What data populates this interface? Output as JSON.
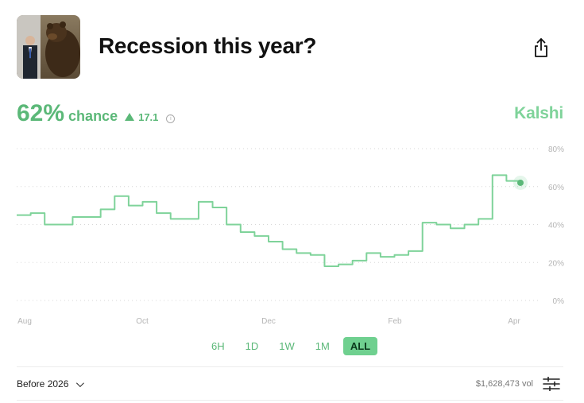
{
  "header": {
    "title": "Recession this year?",
    "thumbnail_icon": "bear-statue-photo",
    "share_icon": "share-icon"
  },
  "stats": {
    "probability": "62%",
    "chance_label": "chance",
    "change": "17.1",
    "change_direction": "up",
    "brand": "Kalshi"
  },
  "ranges": [
    "6H",
    "1D",
    "1W",
    "1M",
    "ALL"
  ],
  "active_range": "ALL",
  "footer": {
    "filter_label": "Before 2026",
    "volume": "$1,628,473 vol",
    "settings_icon": "sliders-icon"
  },
  "colors": {
    "accent": "#5bb878",
    "line": "#7fd39a",
    "active_button": "#6fd08f"
  },
  "chart_data": {
    "type": "line",
    "title": "",
    "xlabel": "",
    "ylabel": "",
    "x_ticks": [
      "Aug",
      "Oct",
      "Dec",
      "Feb",
      "Apr"
    ],
    "y_ticks": [
      "80%",
      "60%",
      "40%",
      "20%",
      "0%"
    ],
    "ylim": [
      0,
      80
    ],
    "grid": true,
    "series": [
      {
        "x": [
          "Aug 1",
          "Aug 8",
          "Aug 15",
          "Aug 22",
          "Aug 29",
          "Sep 5",
          "Sep 12",
          "Sep 19",
          "Sep 26",
          "Oct 3",
          "Oct 10",
          "Oct 17",
          "Oct 24",
          "Oct 31",
          "Nov 7",
          "Nov 14",
          "Nov 21",
          "Nov 28",
          "Dec 5",
          "Dec 12",
          "Dec 19",
          "Dec 26",
          "Jan 2",
          "Jan 9",
          "Jan 16",
          "Jan 23",
          "Jan 30",
          "Feb 6",
          "Feb 13",
          "Feb 20",
          "Feb 27",
          "Mar 6",
          "Mar 13",
          "Mar 20",
          "Mar 27",
          "Apr 1",
          "Apr 3"
        ],
        "values": [
          45,
          46,
          40,
          40,
          44,
          44,
          48,
          55,
          50,
          52,
          46,
          43,
          43,
          52,
          49,
          40,
          36,
          34,
          31,
          27,
          25,
          24,
          18,
          19,
          21,
          25,
          23,
          24,
          26,
          41,
          40,
          38,
          40,
          43,
          66,
          63,
          62
        ]
      }
    ]
  }
}
